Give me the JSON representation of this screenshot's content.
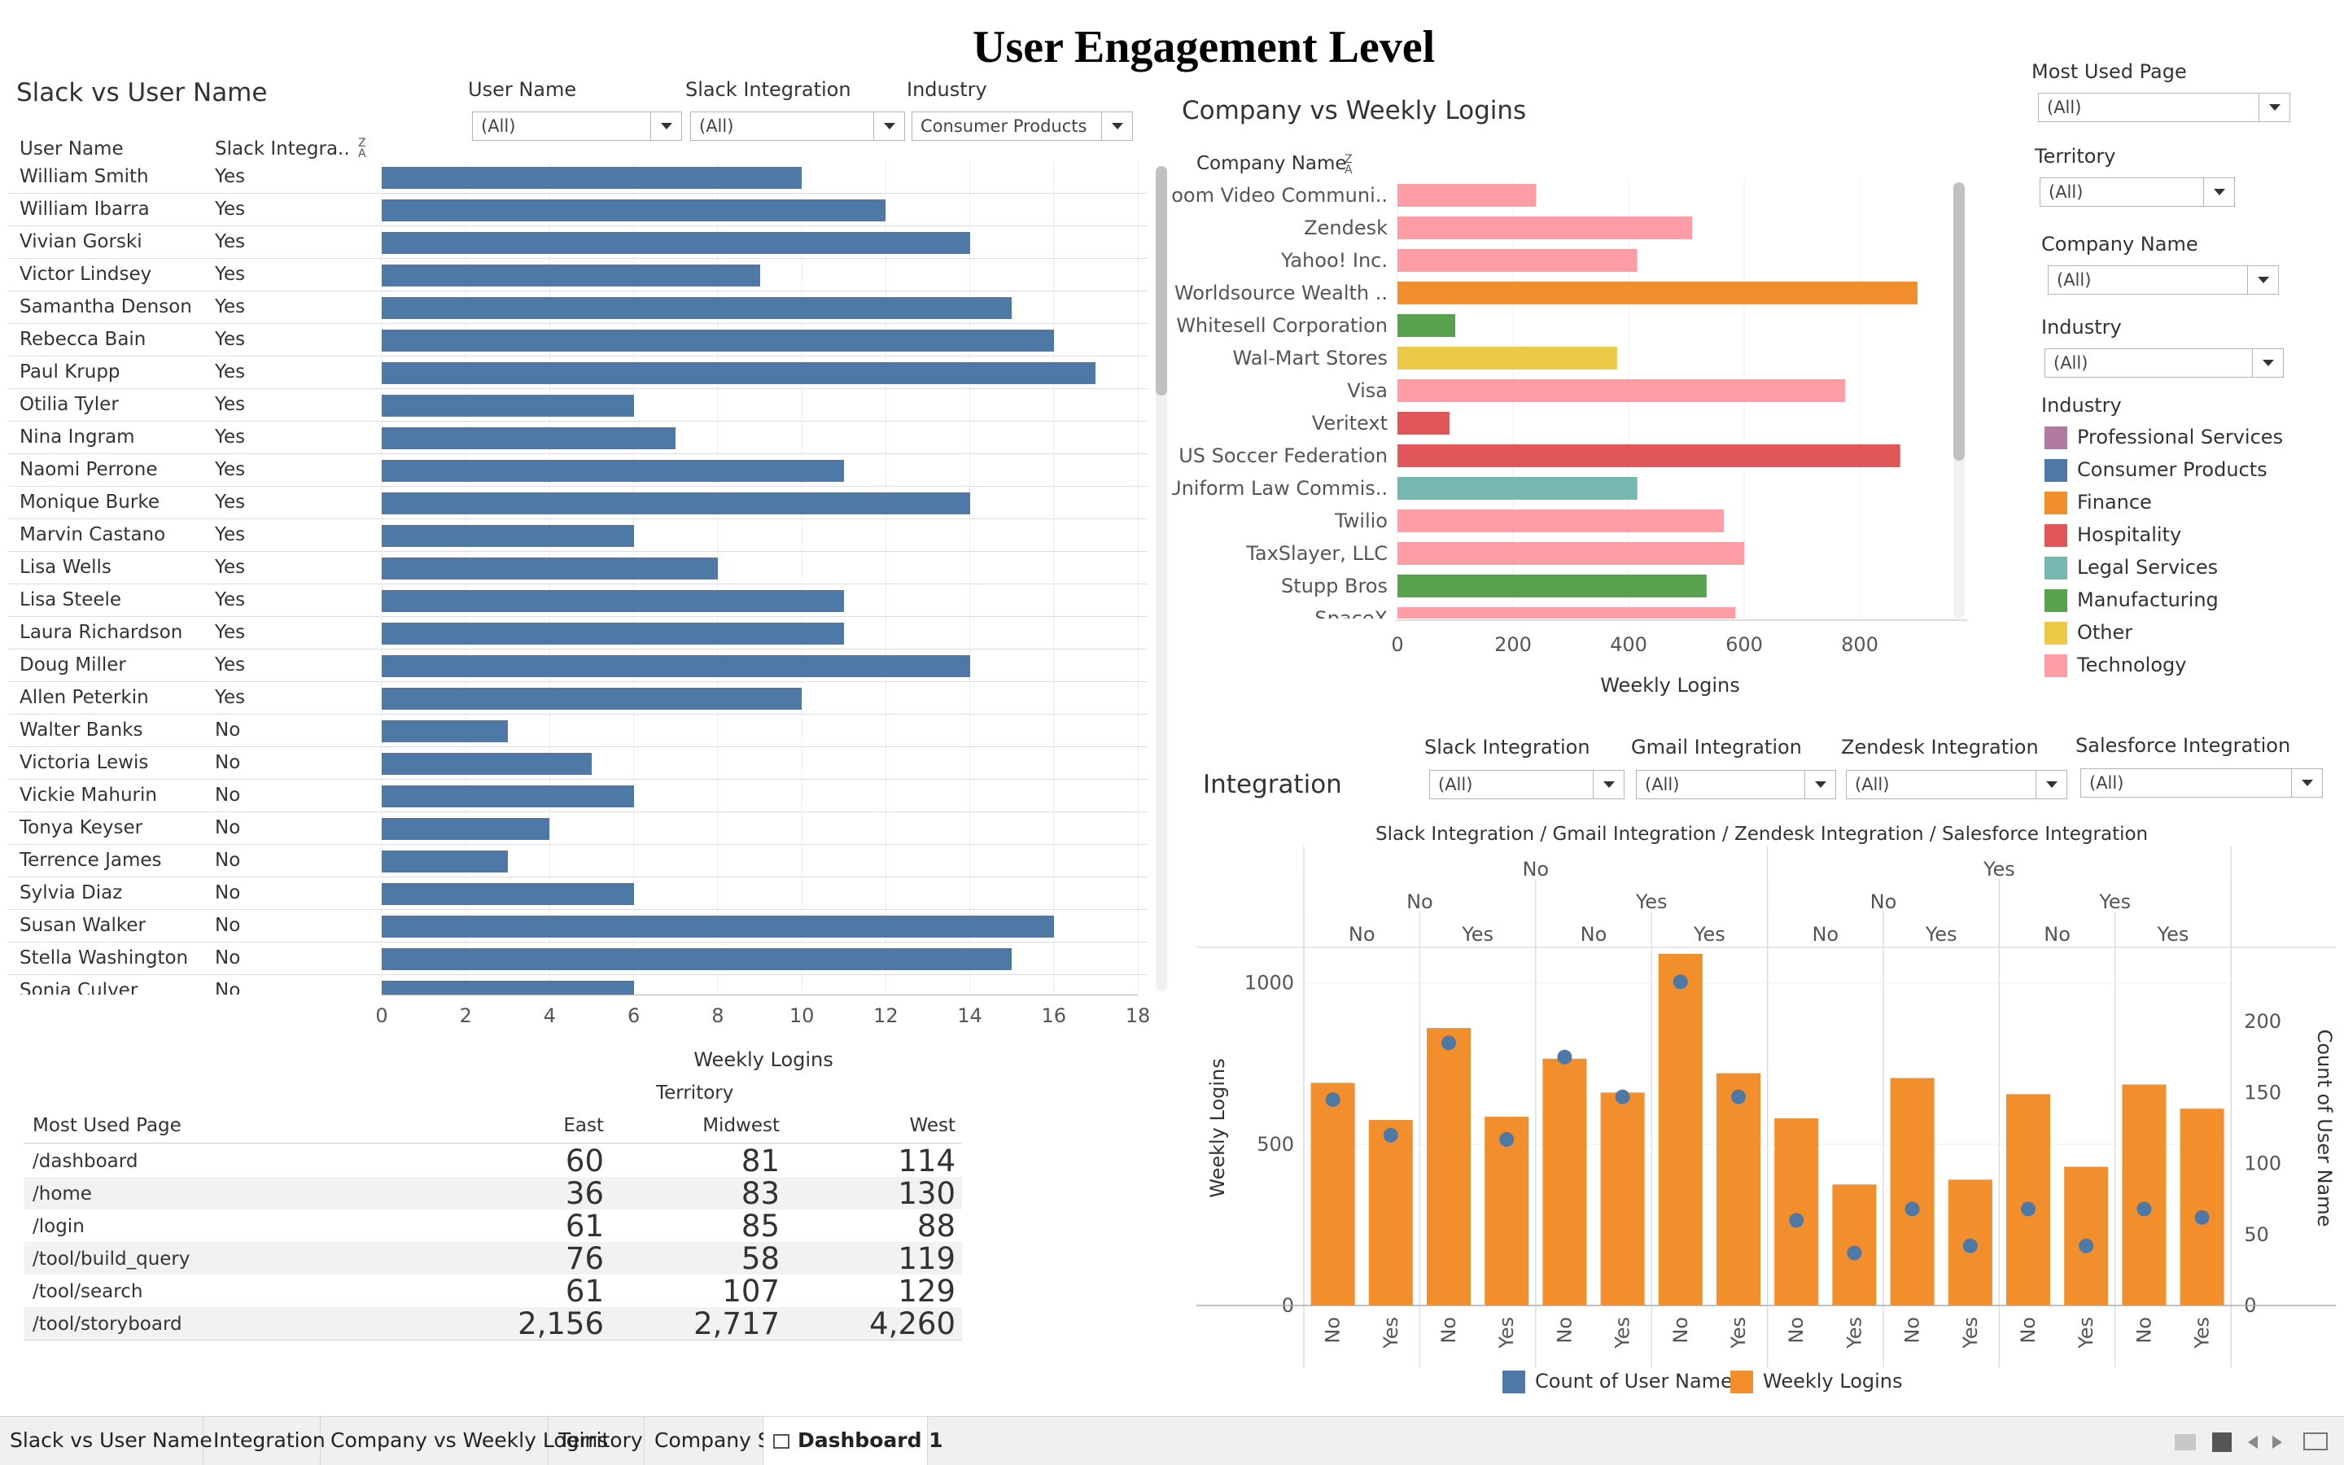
{
  "dashboard_title": "User Engagement Level",
  "colors": {
    "steel_blue": "#4e79a7",
    "orange": "#f28e2b",
    "pink": "#ff9da7",
    "green": "#59a14f",
    "yellow": "#edc948",
    "red": "#e15759",
    "teal": "#76b7b2",
    "purple": "#b07aa1"
  },
  "slack_sheet": {
    "title": "Slack vs User Name",
    "filters": [
      {
        "label": "User Name",
        "value": "(All)"
      },
      {
        "label": "Slack Integration",
        "value": "(All)"
      },
      {
        "label": "Industry",
        "value": "Consumer Products"
      }
    ],
    "col_user_name": "User Name",
    "col_slack": "Slack Integra..",
    "sort_icon": "sort-za-icon",
    "axis_title": "Weekly Logins"
  },
  "company_sheet": {
    "title": "Company vs Weekly Logins",
    "col_company": "Company Name",
    "axis_title": "Weekly Logins"
  },
  "right_filters": [
    {
      "label": "Most Used Page",
      "value": "(All)"
    },
    {
      "label": "Territory",
      "value": "(All)"
    },
    {
      "label": "Company Name",
      "value": "(All)"
    },
    {
      "label": "Industry",
      "value": "(All)"
    }
  ],
  "industry_legend": {
    "title": "Industry",
    "items": [
      {
        "label": "Professional Services",
        "color": "#b07aa1"
      },
      {
        "label": "Consumer Products",
        "color": "#4e79a7"
      },
      {
        "label": "Finance",
        "color": "#f28e2b"
      },
      {
        "label": "Hospitality",
        "color": "#e15759"
      },
      {
        "label": "Legal Services",
        "color": "#76b7b2"
      },
      {
        "label": "Manufacturing",
        "color": "#59a14f"
      },
      {
        "label": "Other",
        "color": "#edc948"
      },
      {
        "label": "Technology",
        "color": "#ff9da7"
      }
    ]
  },
  "integration_sheet": {
    "title": "Integration",
    "filters": [
      {
        "label": "Slack Integration",
        "value": "(All)"
      },
      {
        "label": "Gmail Integration",
        "value": "(All)"
      },
      {
        "label": "Zendesk Integration",
        "value": "(All)"
      },
      {
        "label": "Salesforce Integration",
        "value": "(All)"
      }
    ],
    "header_path": "Slack Integration  /  Gmail Integration  /  Zendesk Integration  /  Salesforce Integration",
    "left_axis_title": "Weekly Logins",
    "right_axis_title": "Count of User Name",
    "legend": [
      {
        "label": "Count of User Name",
        "color": "#4e79a7"
      },
      {
        "label": "Weekly Logins",
        "color": "#f28e2b"
      }
    ]
  },
  "territory_table": {
    "title": "Territory",
    "row_header": "Most Used Page",
    "columns": [
      "East",
      "Midwest",
      "West"
    ],
    "rows": [
      {
        "page": "/dashboard",
        "values": [
          "60",
          "81",
          "114"
        ]
      },
      {
        "page": "/home",
        "values": [
          "36",
          "83",
          "130"
        ]
      },
      {
        "page": "/login",
        "values": [
          "61",
          "85",
          "88"
        ]
      },
      {
        "page": "/tool/build_query",
        "values": [
          "76",
          "58",
          "119"
        ]
      },
      {
        "page": "/tool/search",
        "values": [
          "61",
          "107",
          "129"
        ]
      },
      {
        "page": "/tool/storyboard",
        "values": [
          "2,156",
          "2,717",
          "4,260"
        ]
      }
    ]
  },
  "tabs": [
    {
      "label": "Slack vs User Name",
      "active": false
    },
    {
      "label": "Integration",
      "active": false
    },
    {
      "label": "Company vs Weekly Logins",
      "active": false
    },
    {
      "label": "Territory",
      "active": false
    },
    {
      "label": "Company Size",
      "active": false
    },
    {
      "label": "Dashboard 1",
      "active": true
    }
  ],
  "chart_data": [
    {
      "type": "bar",
      "title": "Slack vs User Name",
      "xlabel": "Weekly Logins",
      "ylabel": "User Name",
      "xlim": [
        0,
        18
      ],
      "xticks": [
        "0",
        "2",
        "4",
        "6",
        "8",
        "10",
        "12",
        "14",
        "16",
        "18"
      ],
      "rows": [
        {
          "name": "William Smith",
          "slack": "Yes",
          "value": 10
        },
        {
          "name": "William Ibarra",
          "slack": "Yes",
          "value": 12
        },
        {
          "name": "Vivian Gorski",
          "slack": "Yes",
          "value": 14
        },
        {
          "name": "Victor Lindsey",
          "slack": "Yes",
          "value": 9
        },
        {
          "name": "Samantha Denson",
          "slack": "Yes",
          "value": 15
        },
        {
          "name": "Rebecca Bain",
          "slack": "Yes",
          "value": 16
        },
        {
          "name": "Paul Krupp",
          "slack": "Yes",
          "value": 17
        },
        {
          "name": "Otilia Tyler",
          "slack": "Yes",
          "value": 6
        },
        {
          "name": "Nina Ingram",
          "slack": "Yes",
          "value": 7
        },
        {
          "name": "Naomi Perrone",
          "slack": "Yes",
          "value": 11
        },
        {
          "name": "Monique Burke",
          "slack": "Yes",
          "value": 14
        },
        {
          "name": "Marvin Castano",
          "slack": "Yes",
          "value": 6
        },
        {
          "name": "Lisa Wells",
          "slack": "Yes",
          "value": 8
        },
        {
          "name": "Lisa Steele",
          "slack": "Yes",
          "value": 11
        },
        {
          "name": "Laura Richardson",
          "slack": "Yes",
          "value": 11
        },
        {
          "name": "Doug Miller",
          "slack": "Yes",
          "value": 14
        },
        {
          "name": "Allen Peterkin",
          "slack": "Yes",
          "value": 10
        },
        {
          "name": "Walter Banks",
          "slack": "No",
          "value": 3
        },
        {
          "name": "Victoria Lewis",
          "slack": "No",
          "value": 5
        },
        {
          "name": "Vickie Mahurin",
          "slack": "No",
          "value": 6
        },
        {
          "name": "Tonya Keyser",
          "slack": "No",
          "value": 4
        },
        {
          "name": "Terrence James",
          "slack": "No",
          "value": 3
        },
        {
          "name": "Sylvia Diaz",
          "slack": "No",
          "value": 6
        },
        {
          "name": "Susan Walker",
          "slack": "No",
          "value": 16
        },
        {
          "name": "Stella Washington",
          "slack": "No",
          "value": 15
        },
        {
          "name": "Sonia Culver",
          "slack": "No",
          "value": 6
        }
      ]
    },
    {
      "type": "bar",
      "title": "Company vs Weekly Logins",
      "xlabel": "Weekly Logins",
      "ylabel": "Company Name",
      "xlim": [
        0,
        950
      ],
      "xticks": [
        "0",
        "200",
        "400",
        "600",
        "800"
      ],
      "rows": [
        {
          "name": "Zoom Video Communi..",
          "value": 240,
          "industry": "Technology"
        },
        {
          "name": "Zendesk",
          "value": 510,
          "industry": "Technology"
        },
        {
          "name": "Yahoo! Inc.",
          "value": 415,
          "industry": "Technology"
        },
        {
          "name": "Worldsource Wealth ..",
          "value": 900,
          "industry": "Finance"
        },
        {
          "name": "Whitesell Corporation",
          "value": 100,
          "industry": "Manufacturing"
        },
        {
          "name": "Wal-Mart Stores",
          "value": 380,
          "industry": "Other"
        },
        {
          "name": "Visa",
          "value": 775,
          "industry": "Technology"
        },
        {
          "name": "Veritext",
          "value": 90,
          "industry": "Hospitality"
        },
        {
          "name": "US Soccer Federation",
          "value": 870,
          "industry": "Hospitality"
        },
        {
          "name": "Uniform Law Commis..",
          "value": 415,
          "industry": "Legal Services"
        },
        {
          "name": "Twilio",
          "value": 565,
          "industry": "Technology"
        },
        {
          "name": "TaxSlayer, LLC",
          "value": 600,
          "industry": "Technology"
        },
        {
          "name": "Stupp Bros",
          "value": 535,
          "industry": "Manufacturing"
        },
        {
          "name": "SpaceX",
          "value": 585,
          "industry": "Technology"
        }
      ]
    },
    {
      "type": "bar",
      "title": "Integration",
      "ylabel": "Weekly Logins",
      "y2label": "Count of User Name",
      "ylim": [
        0,
        1100
      ],
      "y2lim": [
        0,
        250
      ],
      "yticks": [
        "0",
        "500",
        "1000"
      ],
      "y2ticks": [
        "0",
        "50",
        "100",
        "150",
        "200"
      ],
      "level1": {
        "labels": [
          "No",
          "Yes"
        ]
      },
      "level2": {
        "labels": [
          "No",
          "Yes",
          "No",
          "Yes"
        ]
      },
      "level3": {
        "labels": [
          "No",
          "Yes",
          "No",
          "Yes",
          "No",
          "Yes",
          "No",
          "Yes"
        ]
      },
      "categories": [
        "No",
        "Yes",
        "No",
        "Yes",
        "No",
        "Yes",
        "No",
        "Yes",
        "No",
        "Yes",
        "No",
        "Yes",
        "No",
        "Yes",
        "No",
        "Yes"
      ],
      "series": [
        {
          "name": "Weekly Logins",
          "type": "bar",
          "values": [
            690,
            575,
            860,
            585,
            765,
            660,
            1090,
            720,
            580,
            375,
            705,
            390,
            655,
            430,
            685,
            610
          ]
        },
        {
          "name": "Count of User Name",
          "type": "scatter",
          "values": [
            145,
            120,
            185,
            117,
            175,
            147,
            228,
            147,
            60,
            37,
            68,
            42,
            68,
            42,
            68,
            62
          ]
        }
      ]
    }
  ]
}
